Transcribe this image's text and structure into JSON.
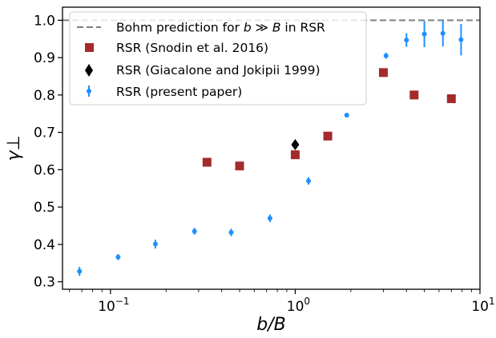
{
  "chart_data": {
    "type": "scatter",
    "xscale": "log",
    "xlim": [
      0.055,
      10
    ],
    "ylim": [
      0.28,
      1.035
    ],
    "xlabel": "b/B",
    "ylabel": "γ⊥",
    "x_ticks": [
      {
        "value": 0.1,
        "base": "10",
        "exp": "−1"
      },
      {
        "value": 1,
        "base": "10",
        "exp": "0"
      },
      {
        "value": 10,
        "base": "10",
        "exp": "1"
      }
    ],
    "y_ticks": [
      0.3,
      0.4,
      0.5,
      0.6,
      0.7,
      0.8,
      0.9,
      1.0
    ],
    "y_tick_labels": [
      "0.3",
      "0.4",
      "0.5",
      "0.6",
      "0.7",
      "0.8",
      "0.9",
      "1.0"
    ],
    "grid": false,
    "legend_position": "upper-left",
    "series": [
      {
        "name": "Bohm prediction for b ≫ B in RSR",
        "kind": "hline",
        "value": 1.0,
        "color": "#808080",
        "style": "dashed"
      },
      {
        "name": "RSR (Snodin et al. 2016)",
        "kind": "square",
        "color": "#a52a2a",
        "x": [
          0.333,
          0.5,
          1.0,
          1.5,
          3.0,
          4.4,
          7.0
        ],
        "y": [
          0.62,
          0.61,
          0.64,
          0.69,
          0.86,
          0.8,
          0.79
        ]
      },
      {
        "name": "RSR (Giacalone and Jokipii 1999)",
        "kind": "diamond",
        "color": "#000000",
        "x": [
          1.0
        ],
        "y": [
          0.667
        ]
      },
      {
        "name": "RSR (present paper)",
        "kind": "errorbar",
        "color": "#1e90ff",
        "x": [
          0.068,
          0.11,
          0.175,
          0.285,
          0.45,
          0.73,
          1.18,
          1.9,
          3.1,
          4.0,
          5.0,
          6.3,
          7.9
        ],
        "y": [
          0.328,
          0.366,
          0.401,
          0.435,
          0.432,
          0.47,
          0.57,
          0.746,
          0.905,
          0.947,
          0.963,
          0.965,
          0.948
        ],
        "err": [
          0.012,
          0.008,
          0.012,
          0.009,
          0.01,
          0.01,
          0.01,
          0.006,
          0.008,
          0.018,
          0.035,
          0.035,
          0.042
        ]
      }
    ],
    "legend": {
      "bohm_prefix": "Bohm prediction for ",
      "bohm_math": "b ≫ B",
      "bohm_suffix": " in RSR",
      "snodin": "RSR (Snodin et al. 2016)",
      "giacalone": "RSR (Giacalone and Jokipii 1999)",
      "present": "RSR (present paper)"
    }
  }
}
